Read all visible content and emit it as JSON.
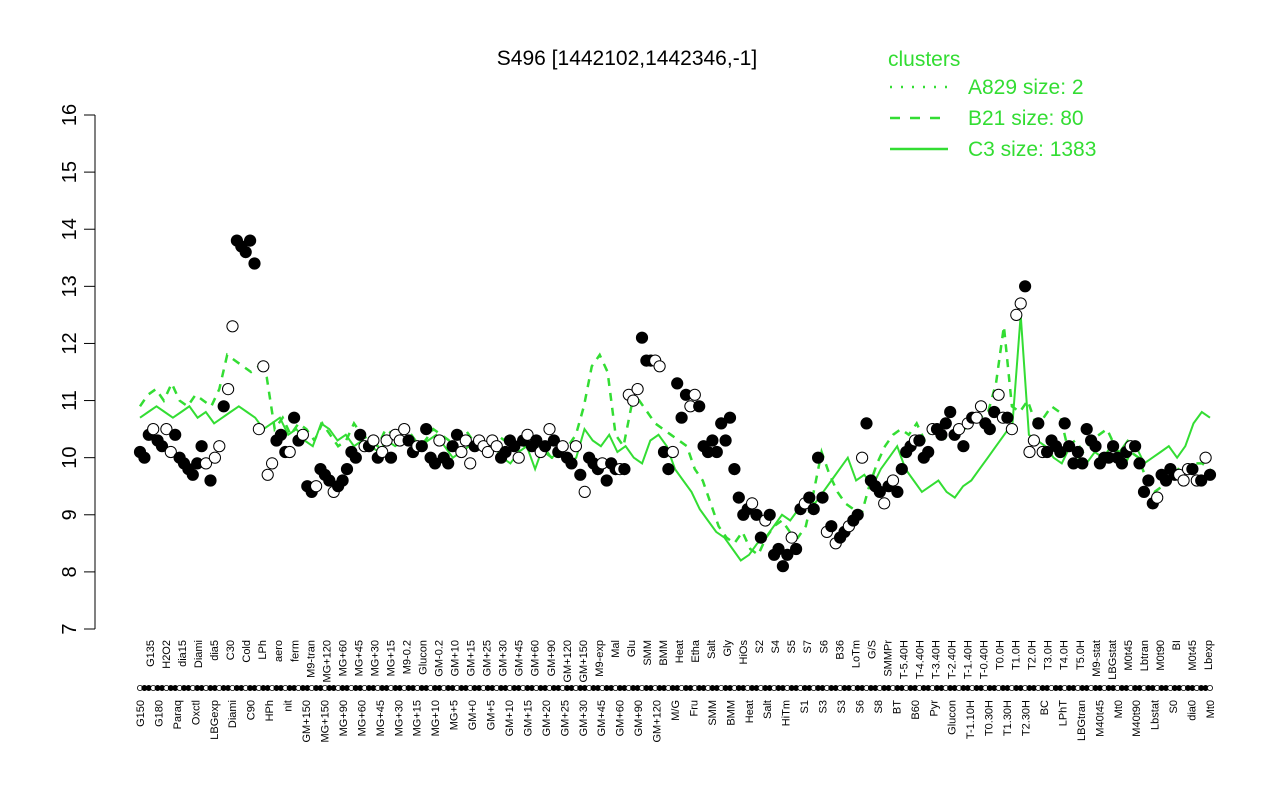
{
  "chart_data": {
    "type": "line",
    "title": "S496 [1442102,1442346,-1]",
    "ylim": [
      7,
      16
    ],
    "yticks": [
      7,
      8,
      9,
      10,
      11,
      12,
      13,
      14,
      15,
      16
    ],
    "grid": false,
    "legend": {
      "placement": "top-right",
      "title": "clusters",
      "entries": [
        {
          "label": "A829 size: 2",
          "style": "dotted"
        },
        {
          "label": "B21 size: 80",
          "style": "dashed"
        },
        {
          "label": "C3 size: 1383",
          "style": "solid"
        }
      ]
    },
    "colors": {
      "line": "#33dd33",
      "point_fill_dark": "#000000",
      "point_fill_light": "#ffffff",
      "point_stroke": "#000000"
    },
    "x_labels_upper": [
      "G135",
      "H2O2",
      "dia15",
      "Diami",
      "dia5",
      "C30",
      "Cold",
      "LPh",
      "aero",
      "ferm",
      "M9-tran",
      "MG+120",
      "MG+60",
      "MG+45",
      "MG+30",
      "MG+15",
      "M9-0.2",
      "Glucon",
      "GM-0.2",
      "GM+10",
      "GM+15",
      "GM+25",
      "GM+30",
      "GM+45",
      "GM+60",
      "GM+90",
      "GM+120",
      "GM+150",
      "M9-exp",
      "Mal",
      "Glu",
      "SMM",
      "BMM",
      "Heat",
      "Etha",
      "Salt",
      "Gly",
      "HiOs",
      "S2",
      "S4",
      "S5",
      "S7",
      "S6",
      "B36",
      "LoTm",
      "G/S",
      "SMMPr",
      "T-5.40H",
      "T-4.40H",
      "T-3.40H",
      "T-2.40H",
      "T-1.40H",
      "T-0.40H",
      "T0.0H",
      "T1.0H",
      "T2.0H",
      "T3.0H",
      "T4.0H",
      "T5.0H",
      "M9-stat",
      "LBGstat",
      "M0t45",
      "Lbtran",
      "M0t90",
      "BI",
      "M0t45",
      "Lbexp"
    ],
    "x_labels_lower": [
      "G150",
      "G180",
      "Paraq",
      "Oxctl",
      "LBGexp",
      "Diami",
      "C90",
      "HPh",
      "nit",
      "GM+150",
      "MG+150",
      "MG+90",
      "MG+60",
      "MG+45",
      "MG+30",
      "MG+15",
      "MG+10",
      "MG+5",
      "GM+0",
      "GM+5",
      "GM+10",
      "GM+15",
      "GM+20",
      "GM+25",
      "GM+30",
      "GM+45",
      "GM+60",
      "GM+90",
      "GM+120",
      "M/G",
      "Fru",
      "SMM",
      "BMM",
      "Heat",
      "Salt",
      "HiTm",
      "S1",
      "S3",
      "S3",
      "S6",
      "S8",
      "BT",
      "B60",
      "Pyr",
      "Glucon",
      "T-1.10H",
      "T0.30H",
      "T1.30H",
      "T2.30H",
      "BC",
      "LPhT",
      "LBGtran",
      "M40t45",
      "Mt0",
      "M40t90",
      "Lbstat",
      "S0",
      "dia0",
      "Mt0"
    ],
    "series": [
      {
        "name": "points",
        "y": [
          10.1,
          10.0,
          10.4,
          10.5,
          10.3,
          10.2,
          10.5,
          10.1,
          10.4,
          10.0,
          9.9,
          9.8,
          9.7,
          9.9,
          10.2,
          9.9,
          9.6,
          10.0,
          10.2,
          10.9,
          11.2,
          12.3,
          13.8,
          13.7,
          13.6,
          13.8,
          13.4,
          10.5,
          11.6,
          9.7,
          9.9,
          10.3,
          10.4,
          10.1,
          10.1,
          10.7,
          10.3,
          10.4,
          9.5,
          9.4,
          9.5,
          9.8,
          9.7,
          9.6,
          9.4,
          9.5,
          9.6,
          9.8,
          10.1,
          10.0,
          10.4,
          10.2,
          10.2,
          10.3,
          10.0,
          10.1,
          10.3,
          10.0,
          10.4,
          10.3,
          10.5,
          10.3,
          10.1,
          10.2,
          10.2,
          10.5,
          10.0,
          9.9,
          10.3,
          10.0,
          9.9,
          10.2,
          10.4,
          10.1,
          10.3,
          9.9,
          10.2,
          10.3,
          10.2,
          10.1,
          10.3,
          10.2,
          10.0,
          10.1,
          10.3,
          10.2,
          10.0,
          10.3,
          10.4,
          10.2,
          10.3,
          10.1,
          10.2,
          10.5,
          10.3,
          10.1,
          10.2,
          10.0,
          9.9,
          10.2,
          9.7,
          9.4,
          10.0,
          9.9,
          9.8,
          9.9,
          9.6,
          9.9,
          9.8,
          9.8,
          9.8,
          11.1,
          11.0,
          11.2,
          12.1,
          11.7,
          11.7,
          11.7,
          11.6,
          10.1,
          9.8,
          10.1,
          11.3,
          10.7,
          11.1,
          10.9,
          11.1,
          10.9,
          10.2,
          10.1,
          10.3,
          10.1,
          10.6,
          10.3,
          10.7,
          9.8,
          9.3,
          9.0,
          9.1,
          9.2,
          9.0,
          8.6,
          8.9,
          9.0,
          8.3,
          8.4,
          8.1,
          8.3,
          8.6,
          8.4,
          9.1,
          9.2,
          9.3,
          9.1,
          10.0,
          9.3,
          8.7,
          8.8,
          8.5,
          8.6,
          8.7,
          8.8,
          8.9,
          9.0,
          10.0,
          10.6,
          9.6,
          9.5,
          9.4,
          9.2,
          9.5,
          9.6,
          9.4,
          9.8,
          10.1,
          10.2,
          10.3,
          10.3,
          10.0,
          10.1,
          10.5,
          10.5,
          10.4,
          10.6,
          10.8,
          10.4,
          10.5,
          10.2,
          10.6,
          10.7,
          10.7,
          10.9,
          10.6,
          10.5,
          10.8,
          11.1,
          10.7,
          10.7,
          10.5,
          12.5,
          12.7,
          13.0,
          10.1,
          10.3,
          10.6,
          10.1,
          10.1,
          10.3,
          10.2,
          10.1,
          10.6,
          10.2,
          9.9,
          10.1,
          9.9,
          10.5,
          10.3,
          10.2,
          9.9,
          10.0,
          10.0,
          10.2,
          10.0,
          9.9,
          10.1,
          10.2,
          10.2,
          9.9,
          9.4,
          9.6,
          9.2,
          9.3,
          9.7,
          9.6,
          9.8,
          9.7,
          9.7,
          9.6,
          9.8,
          9.8,
          9.6,
          9.6,
          10.0,
          9.7
        ]
      },
      {
        "name": "",
        "style": "dotted",
        "y": []
      },
      {
        "name": "",
        "style": "dashed",
        "y": [
          10.9,
          11.1,
          11.2,
          11.0,
          11.3,
          11.0,
          10.9,
          11.1,
          11.0,
          10.9,
          11.2,
          11.8,
          11.7,
          11.6,
          11.5,
          11.6,
          11.4,
          10.5,
          10.7,
          10.4,
          10.6,
          10.5,
          10.3,
          10.6,
          10.4,
          10.2,
          10.3,
          10.6,
          10.4,
          10.3,
          10.2,
          10.5,
          10.4,
          10.3,
          10.4,
          10.2,
          10.3,
          10.5,
          10.4,
          10.3,
          10.4,
          10.5,
          10.3,
          10.2,
          10.3,
          10.4,
          10.3,
          10.2,
          10.1,
          10.3,
          10.2,
          10.1,
          10.0,
          10.1,
          10.2,
          10.4,
          10.9,
          11.6,
          11.8,
          11.5,
          10.4,
          10.2,
          10.9,
          11.0,
          10.8,
          10.6,
          10.5,
          10.4,
          10.3,
          10.2,
          9.8,
          9.6,
          9.2,
          8.8,
          8.6,
          8.5,
          8.7,
          8.4,
          8.3,
          8.6,
          8.8,
          8.9,
          8.7,
          8.6,
          8.8,
          9.4,
          10.1,
          9.7,
          9.4,
          9.2,
          9.1,
          9.0,
          9.5,
          9.9,
          10.2,
          10.4,
          10.5,
          10.4,
          10.6,
          10.3,
          10.5,
          10.4,
          10.3,
          10.4,
          10.5,
          10.6,
          10.7,
          10.8,
          11.3,
          12.3,
          10.9,
          10.8,
          11.0,
          10.6,
          10.7,
          10.9,
          10.8,
          10.2,
          10.3,
          10.1,
          10.3,
          10.4,
          10.5,
          10.2,
          9.8,
          10.1,
          10.0,
          9.6,
          9.4,
          9.5,
          9.6,
          9.8,
          9.7,
          9.9,
          9.9,
          9.8
        ]
      },
      {
        "name": "",
        "style": "solid",
        "y": [
          10.7,
          10.8,
          10.9,
          10.8,
          10.7,
          10.8,
          10.9,
          10.7,
          10.8,
          10.6,
          10.7,
          10.8,
          10.9,
          10.8,
          10.7,
          10.5,
          10.6,
          10.7,
          10.4,
          10.5,
          10.3,
          10.2,
          10.6,
          10.5,
          10.3,
          10.4,
          10.2,
          10.3,
          10.2,
          10.1,
          10.3,
          10.2,
          10.3,
          10.4,
          10.2,
          10.3,
          10.4,
          10.2,
          10.0,
          10.1,
          10.2,
          10.3,
          10.1,
          10.2,
          10.0,
          9.9,
          10.1,
          10.2,
          9.8,
          10.2,
          10.0,
          10.1,
          9.9,
          10.0,
          10.5,
          10.3,
          10.2,
          10.4,
          10.1,
          10.2,
          10.0,
          9.9,
          10.3,
          10.4,
          10.2,
          9.8,
          9.6,
          9.4,
          9.1,
          8.9,
          8.7,
          8.6,
          8.4,
          8.2,
          8.3,
          8.5,
          8.6,
          8.8,
          9.0,
          8.9,
          9.1,
          9.3,
          9.2,
          9.4,
          9.6,
          9.8,
          10.0,
          9.6,
          9.7,
          9.5,
          9.8,
          10.0,
          10.2,
          9.8,
          9.6,
          9.4,
          9.5,
          9.6,
          9.4,
          9.3,
          9.5,
          9.6,
          9.8,
          10.0,
          10.2,
          10.4,
          10.6,
          12.5,
          10.4,
          10.3,
          10.2,
          10.0,
          9.9,
          10.2,
          10.0,
          9.9,
          10.1,
          10.0,
          10.2,
          10.1,
          10.3,
          10.2,
          9.9,
          10.0,
          10.1,
          10.2,
          10.0,
          10.2,
          10.6,
          10.8,
          10.7
        ]
      }
    ]
  }
}
